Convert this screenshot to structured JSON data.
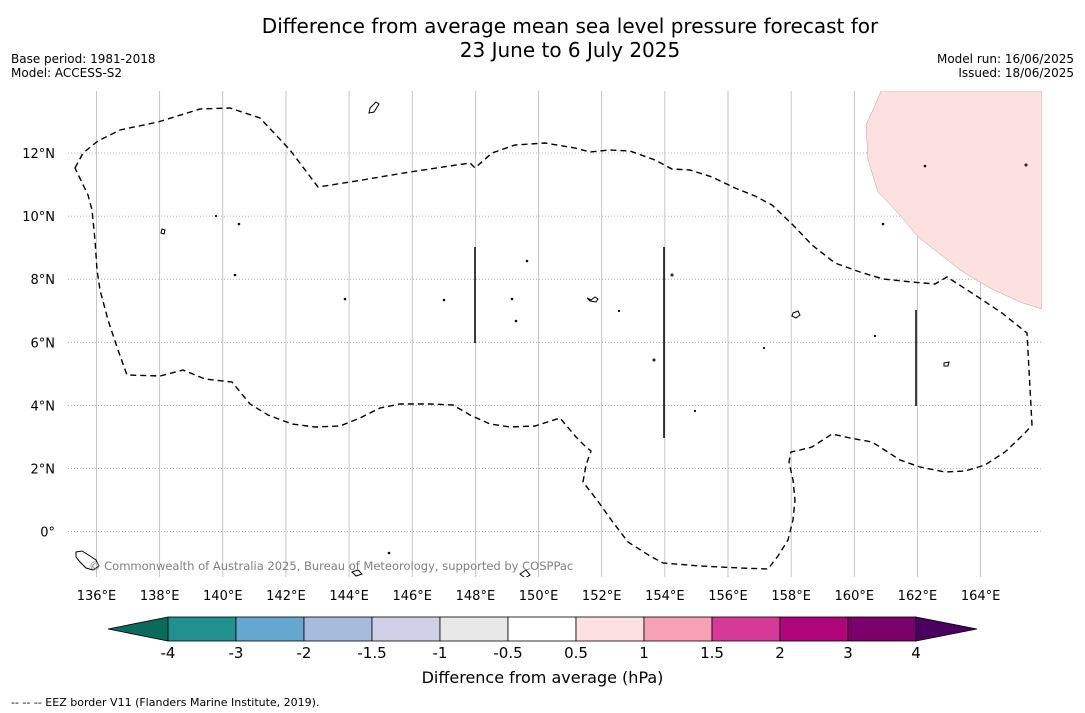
{
  "header": {
    "title_line1": "Difference from average mean sea level pressure forecast for",
    "title_line2": "23 June to 6 July 2025",
    "base_period": "Base period: 1981-2018",
    "model": "Model: ACCESS-S2",
    "model_run": "Model run: 16/06/2025",
    "issued": "Issued: 18/06/2025"
  },
  "map": {
    "x_ticks": [
      "136°E",
      "138°E",
      "140°E",
      "142°E",
      "144°E",
      "146°E",
      "148°E",
      "150°E",
      "152°E",
      "154°E",
      "156°E",
      "158°E",
      "160°E",
      "162°E",
      "164°E"
    ],
    "y_ticks": [
      "12°N",
      "10°N",
      "8°N",
      "6°N",
      "4°N",
      "2°N",
      "0°"
    ],
    "copyright": "© Commonwealth of Australia 2025, Bureau of Meteorology, supported by COSPPac",
    "region_colors": {
      "background": "#ffffff",
      "anomaly_0_5_to_1": "#fde0e0"
    }
  },
  "colorbar": {
    "label": "Difference from average (hPa)",
    "tick_labels": [
      "-4",
      "-3",
      "-2",
      "-1.5",
      "-1",
      "-0.5",
      "0.5",
      "1",
      "1.5",
      "2",
      "3",
      "4"
    ],
    "colors": [
      "#22908f",
      "#66a7d0",
      "#a7bbdc",
      "#d0d0e8",
      "#e8e8e8",
      "#ffffff",
      "#fde0e0",
      "#f8a0b4",
      "#d63a98",
      "#b0047a",
      "#7a006c"
    ],
    "under_color": "#0a6b5a",
    "over_color": "#4a0060"
  },
  "footer": {
    "legend_text": "--  --  -- EEZ border V11 (Flanders Marine Institute, 2019)."
  }
}
